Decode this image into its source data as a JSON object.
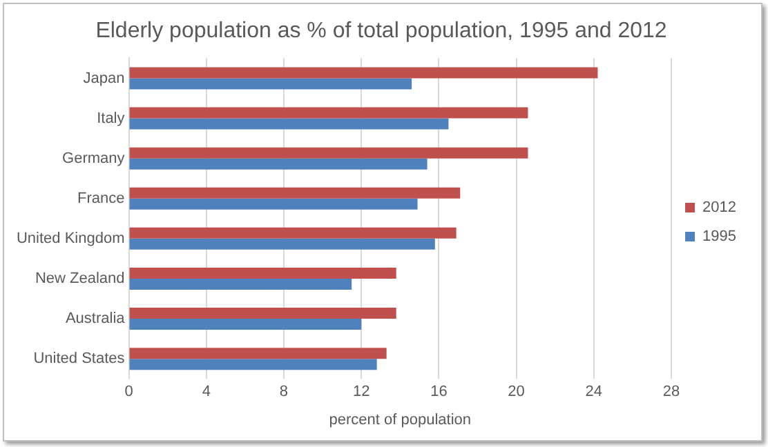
{
  "chart_data": {
    "type": "bar",
    "orientation": "horizontal",
    "title": "Elderly population as % of total population, 1995 and 2012",
    "xlabel": "percent of population",
    "categories": [
      "Japan",
      "Italy",
      "Germany",
      "France",
      "United Kingdom",
      "New Zealand",
      "Australia",
      "United States"
    ],
    "series": [
      {
        "name": "2012",
        "color": "#c0504d",
        "values": [
          24.2,
          20.6,
          20.6,
          17.1,
          16.9,
          13.8,
          13.8,
          13.3
        ]
      },
      {
        "name": "1995",
        "color": "#4f81bd",
        "values": [
          14.6,
          16.5,
          15.4,
          14.9,
          15.8,
          11.5,
          12.0,
          12.8
        ]
      }
    ],
    "xlim": [
      0,
      28
    ],
    "xticks": [
      0,
      4,
      8,
      12,
      16,
      20,
      24,
      28
    ],
    "grid": "x",
    "legend": "right"
  }
}
